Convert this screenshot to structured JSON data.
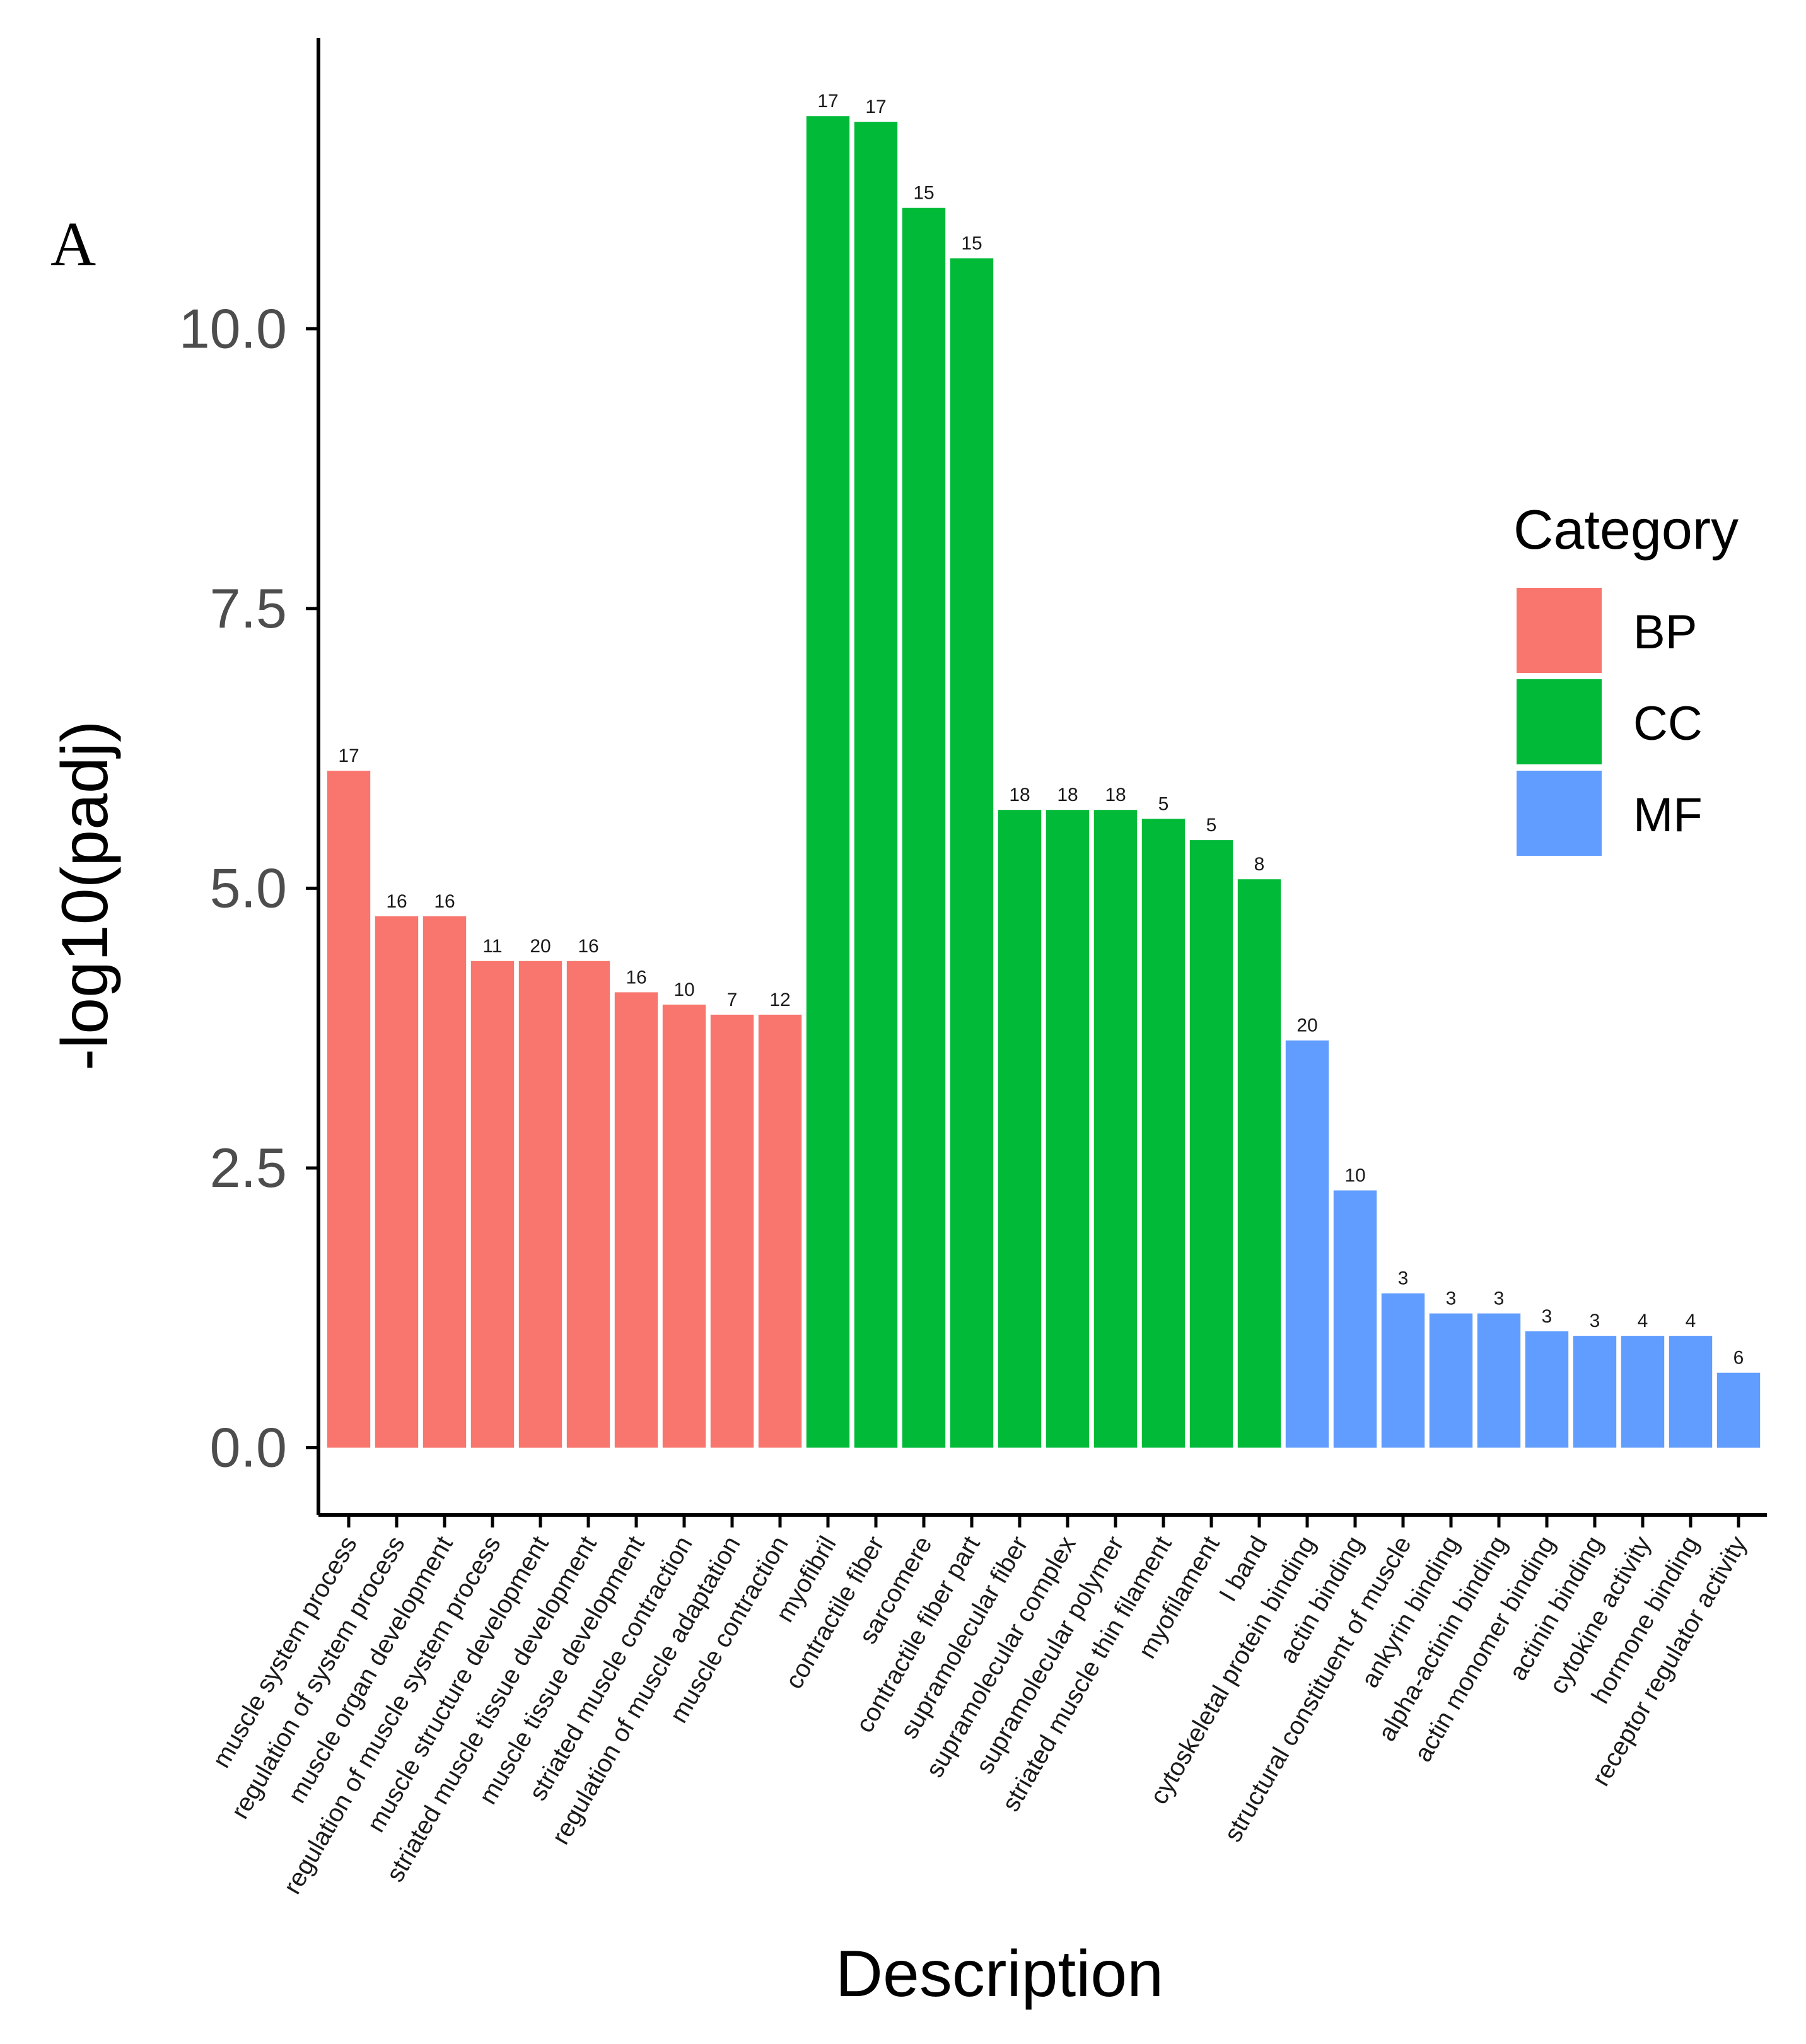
{
  "panel_label": "A",
  "chart_data": {
    "type": "bar",
    "xlabel": "Description",
    "ylabel": "-log10(padj)",
    "ylim": [
      -0.6,
      12.6
    ],
    "yticks": [
      0.0,
      2.5,
      5.0,
      7.5,
      10.0
    ],
    "ytick_labels": [
      "0.0",
      "2.5",
      "5.0",
      "7.5",
      "10.0"
    ],
    "grid": false,
    "legend": {
      "title": "Category",
      "position": "right",
      "entries": [
        {
          "name": "BP",
          "color": "#f8766d"
        },
        {
          "name": "CC",
          "color": "#00ba38"
        },
        {
          "name": "MF",
          "color": "#619cff"
        }
      ]
    },
    "bars": [
      {
        "category": "BP",
        "label": "muscle system process",
        "value": 6.05,
        "count": "17"
      },
      {
        "category": "BP",
        "label": "regulation of system process",
        "value": 4.75,
        "count": "16"
      },
      {
        "category": "BP",
        "label": "muscle organ development",
        "value": 4.75,
        "count": "16"
      },
      {
        "category": "BP",
        "label": "regulation of muscle system process",
        "value": 4.35,
        "count": "11"
      },
      {
        "category": "BP",
        "label": "muscle structure development",
        "value": 4.35,
        "count": "20"
      },
      {
        "category": "BP",
        "label": "striated muscle tissue development",
        "value": 4.35,
        "count": "16"
      },
      {
        "category": "BP",
        "label": "muscle tissue development",
        "value": 4.07,
        "count": "16"
      },
      {
        "category": "BP",
        "label": "striated muscle contraction",
        "value": 3.96,
        "count": "10"
      },
      {
        "category": "BP",
        "label": "regulation of muscle adaptation",
        "value": 3.87,
        "count": "7"
      },
      {
        "category": "BP",
        "label": "muscle contraction",
        "value": 3.87,
        "count": "12"
      },
      {
        "category": "CC",
        "label": "myofibril",
        "value": 11.9,
        "count": "17"
      },
      {
        "category": "CC",
        "label": "contractile fiber",
        "value": 11.85,
        "count": "17"
      },
      {
        "category": "CC",
        "label": "sarcomere",
        "value": 11.08,
        "count": "15"
      },
      {
        "category": "CC",
        "label": "contractile fiber part",
        "value": 10.63,
        "count": "15"
      },
      {
        "category": "CC",
        "label": "supramolecular fiber",
        "value": 5.7,
        "count": "18"
      },
      {
        "category": "CC",
        "label": "supramolecular complex",
        "value": 5.7,
        "count": "18"
      },
      {
        "category": "CC",
        "label": "supramolecular polymer",
        "value": 5.7,
        "count": "18"
      },
      {
        "category": "CC",
        "label": "striated muscle thin filament",
        "value": 5.62,
        "count": "5"
      },
      {
        "category": "CC",
        "label": "myofilament",
        "value": 5.43,
        "count": "5"
      },
      {
        "category": "CC",
        "label": "I band",
        "value": 5.08,
        "count": "8"
      },
      {
        "category": "MF",
        "label": "cytoskeletal protein binding",
        "value": 3.64,
        "count": "20"
      },
      {
        "category": "MF",
        "label": "actin binding",
        "value": 2.3,
        "count": "10"
      },
      {
        "category": "MF",
        "label": "structural constituent of muscle",
        "value": 1.38,
        "count": "3"
      },
      {
        "category": "MF",
        "label": "ankyrin binding",
        "value": 1.2,
        "count": "3"
      },
      {
        "category": "MF",
        "label": "alpha-actinin binding",
        "value": 1.2,
        "count": "3"
      },
      {
        "category": "MF",
        "label": "actin monomer binding",
        "value": 1.04,
        "count": "3"
      },
      {
        "category": "MF",
        "label": "actinin binding",
        "value": 1.0,
        "count": "3"
      },
      {
        "category": "MF",
        "label": "cytokine activity",
        "value": 1.0,
        "count": "4"
      },
      {
        "category": "MF",
        "label": "hormone binding",
        "value": 1.0,
        "count": "4"
      },
      {
        "category": "MF",
        "label": "receptor regulator activity",
        "value": 0.67,
        "count": "6"
      }
    ]
  }
}
